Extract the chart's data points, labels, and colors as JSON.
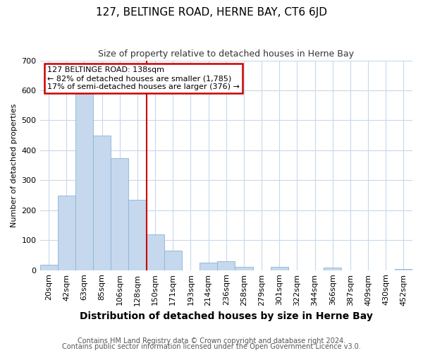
{
  "title": "127, BELTINGE ROAD, HERNE BAY, CT6 6JD",
  "subtitle": "Size of property relative to detached houses in Herne Bay",
  "xlabel": "Distribution of detached houses by size in Herne Bay",
  "ylabel": "Number of detached properties",
  "footer1": "Contains HM Land Registry data © Crown copyright and database right 2024.",
  "footer2": "Contains public sector information licensed under the Open Government Licence v3.0.",
  "categories": [
    "20sqm",
    "42sqm",
    "63sqm",
    "85sqm",
    "106sqm",
    "128sqm",
    "150sqm",
    "171sqm",
    "193sqm",
    "214sqm",
    "236sqm",
    "258sqm",
    "279sqm",
    "301sqm",
    "322sqm",
    "344sqm",
    "366sqm",
    "387sqm",
    "409sqm",
    "430sqm",
    "452sqm"
  ],
  "values": [
    18,
    248,
    590,
    450,
    375,
    235,
    120,
    65,
    0,
    25,
    30,
    12,
    0,
    10,
    0,
    0,
    8,
    0,
    0,
    0,
    5
  ],
  "bar_color": "#c5d8ed",
  "bar_edge_color": "#8bb4d8",
  "red_line_x": 5.5,
  "annotation_line1": "127 BELTINGE ROAD: 138sqm",
  "annotation_line2": "← 82% of detached houses are smaller (1,785)",
  "annotation_line3": "17% of semi-detached houses are larger (376) →",
  "annotation_box_color": "#ffffff",
  "annotation_box_edge": "#cc0000",
  "ylim": [
    0,
    700
  ],
  "yticks": [
    0,
    100,
    200,
    300,
    400,
    500,
    600,
    700
  ],
  "grid_color": "#c8d8ec",
  "background_color": "#ffffff",
  "title_fontsize": 11,
  "subtitle_fontsize": 9,
  "xlabel_fontsize": 10,
  "ylabel_fontsize": 8,
  "tick_fontsize": 8,
  "footer_fontsize": 7
}
